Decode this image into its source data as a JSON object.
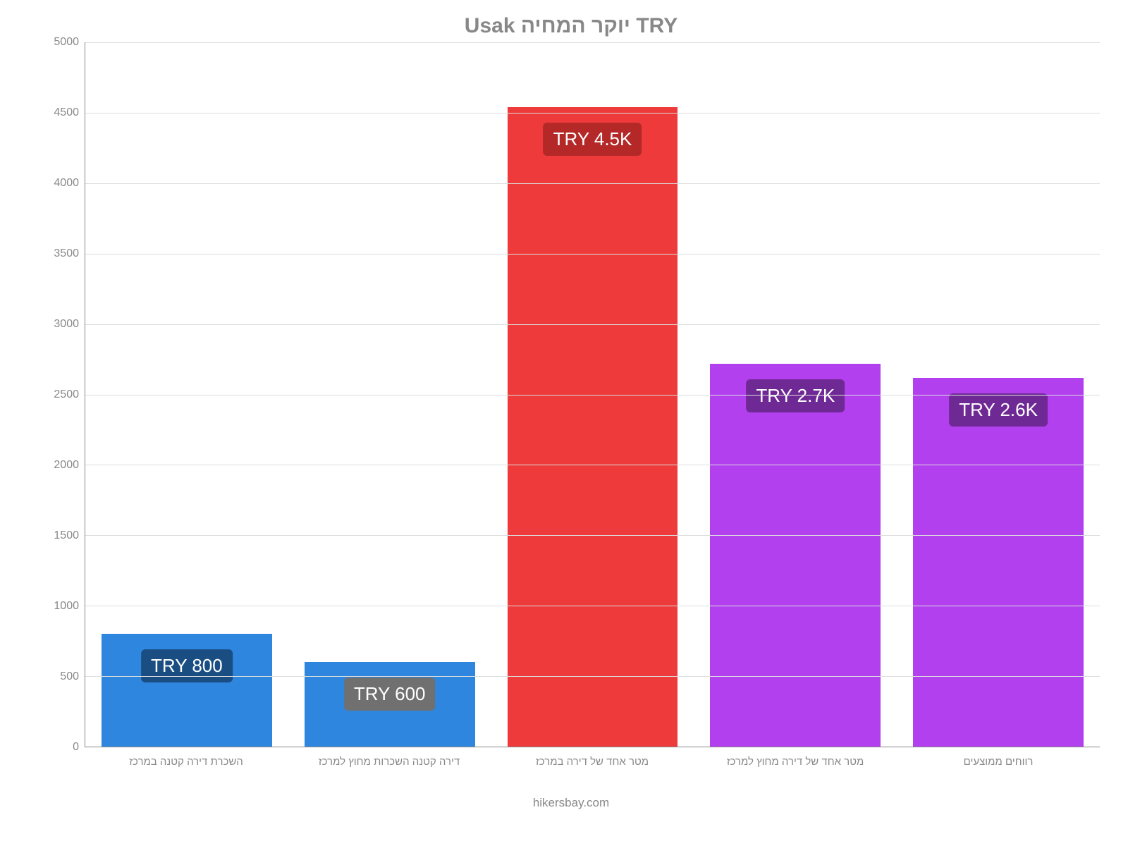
{
  "chart": {
    "type": "bar",
    "title": "Usak יוקר המחיה TRY",
    "title_fontsize": 30,
    "title_color": "#888888",
    "background_color": "#ffffff",
    "axis_color": "#888888",
    "grid_color": "#dddddd",
    "ylim": [
      0,
      5000
    ],
    "ytick_step": 500,
    "y_ticks": [
      "0",
      "500",
      "1000",
      "1500",
      "2000",
      "2500",
      "3000",
      "3500",
      "4000",
      "4500",
      "5000"
    ],
    "tick_fontsize": 16,
    "x_label_fontsize": 15,
    "bar_width": 0.84,
    "value_label_fontsize": 26,
    "value_label_text_color": "#ffffff",
    "value_label_border_radius": 6,
    "categories": [
      "השכרת דירה קטנה במרכז",
      "דירה קטנה השכרות מחוץ למרכז",
      "מטר אחד של דירה במרכז",
      "מטר אחד של דירה מחוץ למרכז",
      "רווחים ממוצעים"
    ],
    "values": [
      800,
      600,
      4540,
      2720,
      2620
    ],
    "value_labels": [
      "TRY 800",
      "TRY 600",
      "TRY 4.5K",
      "TRY 2.7K",
      "TRY 2.6K"
    ],
    "bar_colors": [
      "#2e86de",
      "#2e86de",
      "#ee3a3a",
      "#b240ee",
      "#b240ee"
    ],
    "label_bg_colors": [
      "#1a4e82",
      "#707070",
      "#b42828",
      "#6f2995",
      "#6f2995"
    ],
    "footer": "hikersbay.com",
    "footer_fontsize": 17,
    "footer_color": "#888888"
  }
}
